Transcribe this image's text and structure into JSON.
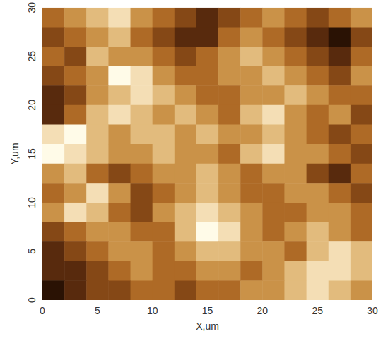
{
  "chart_data": {
    "type": "heatmap",
    "x_label": "X,um",
    "y_label": "Y,um",
    "x": [
      1,
      3,
      5,
      7,
      9,
      11,
      13,
      15,
      17,
      19,
      21,
      23,
      25,
      27,
      29
    ],
    "y": [
      29,
      27,
      25,
      23,
      21,
      19,
      17,
      15,
      13,
      11,
      9,
      7,
      5,
      3,
      1
    ],
    "z": [
      [
        4,
        5,
        6,
        7,
        5,
        4,
        3,
        2,
        3,
        4,
        5,
        4,
        3,
        4,
        5
      ],
      [
        3,
        4,
        5,
        6,
        4,
        3,
        2,
        2,
        4,
        5,
        4,
        3,
        2,
        1,
        3
      ],
      [
        4,
        3,
        6,
        5,
        5,
        4,
        3,
        4,
        5,
        6,
        5,
        4,
        3,
        2,
        4
      ],
      [
        3,
        4,
        5,
        8,
        7,
        5,
        4,
        4,
        5,
        5,
        6,
        5,
        4,
        3,
        5
      ],
      [
        2,
        3,
        5,
        6,
        7,
        6,
        5,
        4,
        4,
        5,
        5,
        6,
        5,
        4,
        4
      ],
      [
        2,
        4,
        6,
        7,
        6,
        5,
        6,
        5,
        4,
        6,
        7,
        5,
        4,
        5,
        3
      ],
      [
        7,
        8,
        6,
        5,
        6,
        6,
        5,
        6,
        5,
        5,
        6,
        5,
        4,
        3,
        4
      ],
      [
        8,
        7,
        6,
        5,
        5,
        6,
        5,
        5,
        4,
        6,
        7,
        5,
        5,
        4,
        3
      ],
      [
        5,
        6,
        4,
        3,
        4,
        5,
        5,
        6,
        5,
        4,
        5,
        5,
        3,
        2,
        4
      ],
      [
        4,
        5,
        7,
        5,
        3,
        4,
        5,
        6,
        5,
        4,
        4,
        5,
        5,
        4,
        3
      ],
      [
        5,
        7,
        6,
        4,
        3,
        5,
        6,
        7,
        6,
        5,
        4,
        4,
        5,
        5,
        4
      ],
      [
        3,
        4,
        5,
        5,
        4,
        4,
        6,
        8,
        7,
        5,
        4,
        5,
        6,
        5,
        4
      ],
      [
        2,
        3,
        4,
        5,
        5,
        4,
        5,
        6,
        6,
        5,
        5,
        4,
        6,
        7,
        6
      ],
      [
        2,
        2,
        3,
        4,
        5,
        4,
        4,
        5,
        5,
        4,
        5,
        6,
        7,
        7,
        6
      ],
      [
        1,
        2,
        3,
        3,
        4,
        4,
        3,
        4,
        4,
        5,
        5,
        6,
        7,
        6,
        5
      ]
    ],
    "xlim": [
      0,
      30
    ],
    "ylim": [
      0,
      30
    ],
    "xticks": [
      0,
      5,
      10,
      15,
      20,
      25,
      30
    ],
    "yticks": [
      0,
      5,
      10,
      15,
      20,
      25,
      30
    ],
    "grid": false
  }
}
